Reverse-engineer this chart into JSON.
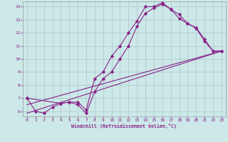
{
  "xlabel": "Windchill (Refroidissement éolien,°C)",
  "bg_color": "#cce8e8",
  "grid_color": "#b0cccc",
  "line_color": "#882288",
  "xlim": [
    -0.5,
    23.5
  ],
  "ylim": [
    5.6,
    14.4
  ],
  "xticks": [
    0,
    1,
    2,
    3,
    4,
    5,
    6,
    7,
    8,
    9,
    10,
    11,
    12,
    13,
    14,
    15,
    16,
    17,
    18,
    19,
    20,
    21,
    22,
    23
  ],
  "yticks": [
    6,
    7,
    8,
    9,
    10,
    11,
    12,
    13,
    14
  ],
  "curve1_x": [
    0,
    1,
    2,
    3,
    4,
    5,
    6,
    7,
    8,
    9,
    10,
    11,
    12,
    13,
    14,
    15,
    16,
    17,
    18,
    19,
    20,
    21,
    22,
    23
  ],
  "curve1_y": [
    7.0,
    6.0,
    5.85,
    6.3,
    6.6,
    6.7,
    6.7,
    6.1,
    8.5,
    9.0,
    10.2,
    11.0,
    12.0,
    12.9,
    14.0,
    14.0,
    14.3,
    13.8,
    13.4,
    12.7,
    12.4,
    11.5,
    10.6,
    10.6
  ],
  "curve2_x": [
    0,
    4,
    5,
    6,
    7,
    8,
    9,
    10,
    11,
    12,
    13,
    14,
    15,
    16,
    17,
    18,
    19,
    20,
    21,
    22,
    23
  ],
  "curve2_y": [
    7.0,
    6.6,
    6.7,
    6.5,
    5.85,
    7.5,
    8.5,
    9.0,
    10.0,
    11.0,
    12.5,
    13.5,
    13.9,
    14.2,
    13.8,
    13.1,
    12.7,
    12.35,
    11.35,
    10.6,
    10.6
  ],
  "line1_x": [
    0,
    23
  ],
  "line1_y": [
    6.5,
    10.6
  ],
  "line2_x": [
    0,
    23
  ],
  "line2_y": [
    5.85,
    10.6
  ]
}
